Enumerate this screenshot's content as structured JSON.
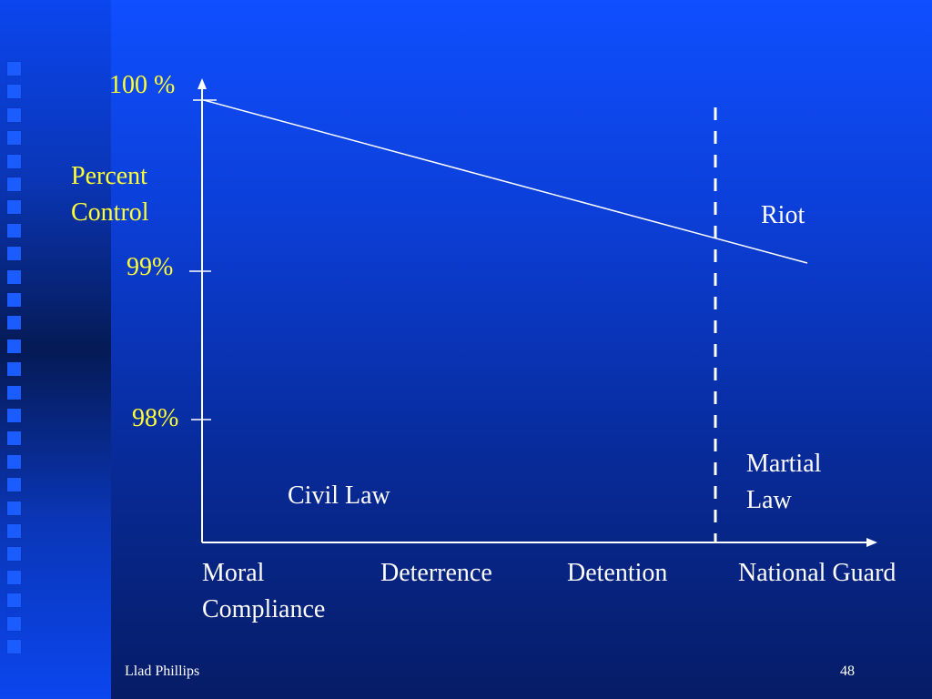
{
  "y_axis": {
    "title": "Percent\nControl",
    "tick_100": "100 %",
    "tick_99": "99%",
    "tick_98": "98%"
  },
  "x_axis": {
    "moral_compliance": "Moral\nCompliance",
    "deterrence": "Deterrence",
    "detention": "Detention",
    "national_guard": "National Guard"
  },
  "regions": {
    "riot": "Riot",
    "civil_law": "Civil Law",
    "martial_law": "Martial\nLaw"
  },
  "footer": {
    "author": "Llad Phillips",
    "page_number": "48"
  },
  "colors": {
    "axis_labels": "#ffff33",
    "region_labels": "#ffffff",
    "lines": "#ffffff"
  }
}
